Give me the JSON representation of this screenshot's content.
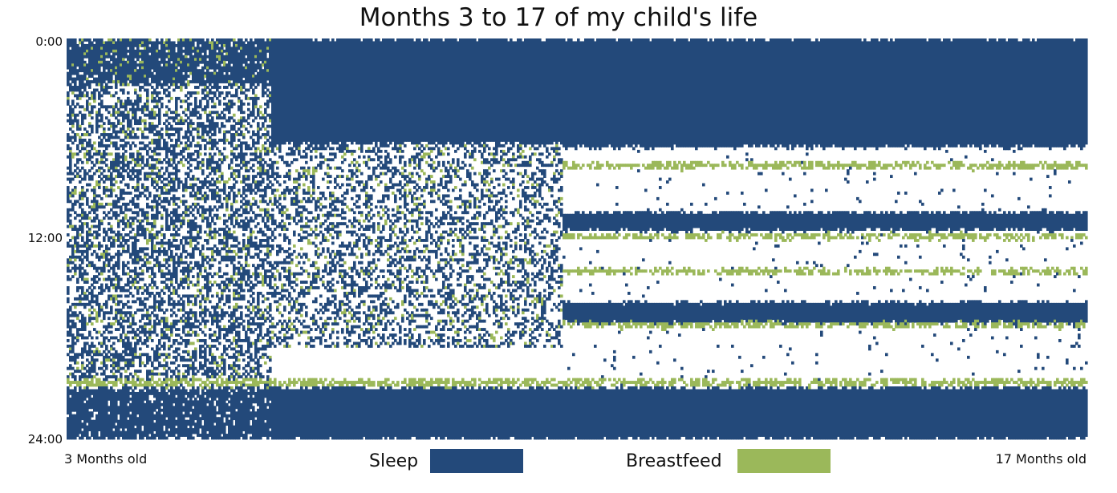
{
  "chart_data": {
    "type": "heatmap",
    "title": "Months 3 to 17 of my child's life",
    "x_axis": {
      "start_label": "3 Months old",
      "end_label": "17 Months old",
      "range_months": [
        3,
        17
      ]
    },
    "y_axis": {
      "tick_labels": [
        "0:00",
        "12:00",
        "24:00"
      ],
      "range_hours": [
        0,
        24
      ],
      "inverted": true
    },
    "legend": [
      {
        "name": "Sleep",
        "color": "#23497a"
      },
      {
        "name": "Breastfeed",
        "color": "#9bb85a"
      }
    ],
    "background_color": "#ffffff",
    "phases": [
      {
        "months": [
          3,
          5.8
        ],
        "pattern": "fragmented",
        "sleep_blocks": [
          [
            0,
            2.8
          ],
          [
            21,
            24
          ]
        ],
        "fragmented_sleep_hours": [
          2.8,
          21
        ],
        "feed_blocks": [
          [
            20.4,
            20.8
          ]
        ]
      },
      {
        "months": [
          5.8,
          9.8
        ],
        "pattern": "transitional",
        "sleep_blocks": [
          [
            0,
            6.3
          ],
          [
            20.9,
            24
          ]
        ],
        "fragmented_sleep_hours": [
          6.3,
          18.5
        ],
        "feed_blocks": [
          [
            20.4,
            20.8
          ]
        ]
      },
      {
        "months": [
          9.8,
          17
        ],
        "pattern": "consolidated",
        "sleep_blocks": [
          [
            0,
            6.5
          ],
          [
            10.4,
            11.5
          ],
          [
            15.8,
            17.0
          ],
          [
            20.9,
            24
          ]
        ],
        "feed_blocks": [
          [
            7.4,
            7.8
          ],
          [
            11.7,
            12.0
          ],
          [
            13.8,
            14.1
          ],
          [
            17.0,
            17.3
          ],
          [
            20.4,
            20.8
          ]
        ]
      }
    ]
  }
}
